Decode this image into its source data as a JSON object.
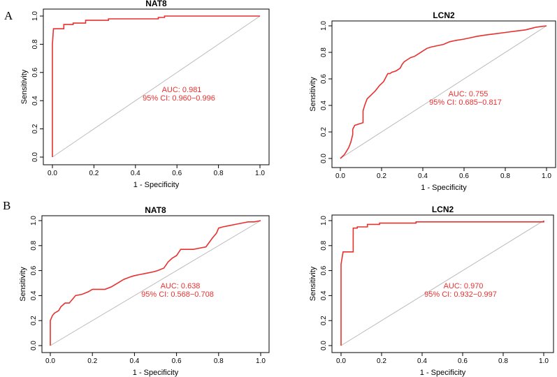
{
  "panel_labels": [
    "A",
    "B"
  ],
  "chart_data": [
    {
      "type": "line",
      "panel": "A",
      "title": "NAT8",
      "xlabel": "1 - Specificity",
      "ylabel": "Sensitivity",
      "xlim": [
        0,
        1
      ],
      "ylim": [
        0,
        1
      ],
      "xticks": [
        "0.0",
        "0.2",
        "0.4",
        "0.6",
        "0.8",
        "1.0"
      ],
      "yticks": [
        "0.0",
        "0.2",
        "0.4",
        "0.6",
        "0.8",
        "1.0"
      ],
      "auc_text": "AUC: 0.981",
      "ci_text": "95% CI: 0.960−0.996",
      "roc_color": "#e8312f",
      "diagonal_color": "#bbbbbb",
      "series": [
        {
          "name": "ROC",
          "x": [
            0,
            0,
            0.005,
            0.055,
            0.055,
            0.1,
            0.1,
            0.16,
            0.16,
            0.27,
            0.27,
            0.51,
            0.51,
            0.54,
            0.54,
            1.0
          ],
          "y": [
            0,
            0.8,
            0.91,
            0.91,
            0.94,
            0.94,
            0.95,
            0.95,
            0.97,
            0.97,
            0.98,
            0.98,
            0.99,
            0.99,
            1.0,
            1.0
          ]
        }
      ]
    },
    {
      "type": "line",
      "panel": "A",
      "title": "LCN2",
      "xlabel": "1 - Specificity",
      "ylabel": "Sensitivity",
      "xlim": [
        0,
        1
      ],
      "ylim": [
        0,
        1
      ],
      "xticks": [
        "0.0",
        "0.2",
        "0.4",
        "0.6",
        "0.8",
        "1.0"
      ],
      "yticks": [
        "0.0",
        "0.2",
        "0.4",
        "0.6",
        "0.8",
        "1.0"
      ],
      "auc_text": "AUC: 0.755",
      "ci_text": "95% CI: 0.685−0.817",
      "roc_color": "#e8312f",
      "diagonal_color": "#bbbbbb",
      "series": [
        {
          "name": "ROC",
          "x": [
            0,
            0.02,
            0.04,
            0.05,
            0.06,
            0.06,
            0.07,
            0.11,
            0.11,
            0.12,
            0.13,
            0.15,
            0.17,
            0.19,
            0.21,
            0.22,
            0.23,
            0.24,
            0.25,
            0.27,
            0.29,
            0.3,
            0.31,
            0.33,
            0.34,
            0.36,
            0.38,
            0.4,
            0.42,
            0.44,
            0.47,
            0.5,
            0.53,
            0.56,
            0.6,
            0.63,
            0.66,
            0.7,
            0.75,
            0.8,
            0.85,
            0.9,
            0.95,
            1.0
          ],
          "y": [
            0,
            0.03,
            0.08,
            0.12,
            0.18,
            0.22,
            0.25,
            0.27,
            0.36,
            0.41,
            0.45,
            0.48,
            0.51,
            0.55,
            0.58,
            0.61,
            0.64,
            0.64,
            0.65,
            0.66,
            0.68,
            0.71,
            0.73,
            0.75,
            0.76,
            0.77,
            0.79,
            0.81,
            0.83,
            0.84,
            0.85,
            0.86,
            0.88,
            0.89,
            0.9,
            0.91,
            0.92,
            0.93,
            0.94,
            0.95,
            0.96,
            0.97,
            0.99,
            1.0
          ]
        }
      ]
    },
    {
      "type": "line",
      "panel": "B",
      "title": "NAT8",
      "xlabel": "1 - Specificity",
      "ylabel": "Sensitivity",
      "xlim": [
        0,
        1
      ],
      "ylim": [
        0,
        1
      ],
      "xticks": [
        "0.0",
        "0.2",
        "0.4",
        "0.6",
        "0.8",
        "1.0"
      ],
      "yticks": [
        "0.0",
        "0.2",
        "0.4",
        "0.6",
        "0.8",
        "1.0"
      ],
      "auc_text": "AUC: 0.638",
      "ci_text": "95% CI: 0.568−0.708",
      "roc_color": "#e8312f",
      "diagonal_color": "#bbbbbb",
      "series": [
        {
          "name": "ROC",
          "x": [
            0,
            0,
            0.01,
            0.02,
            0.04,
            0.05,
            0.07,
            0.09,
            0.11,
            0.12,
            0.15,
            0.18,
            0.2,
            0.23,
            0.26,
            0.29,
            0.31,
            0.33,
            0.35,
            0.38,
            0.4,
            0.43,
            0.46,
            0.49,
            0.51,
            0.54,
            0.56,
            0.58,
            0.6,
            0.62,
            0.65,
            0.68,
            0.71,
            0.74,
            0.77,
            0.79,
            0.8,
            0.82,
            0.85,
            0.88,
            0.91,
            0.94,
            0.97,
            1.0
          ],
          "y": [
            0,
            0.2,
            0.24,
            0.26,
            0.28,
            0.31,
            0.34,
            0.34,
            0.38,
            0.4,
            0.41,
            0.43,
            0.45,
            0.45,
            0.45,
            0.47,
            0.49,
            0.51,
            0.53,
            0.55,
            0.56,
            0.57,
            0.58,
            0.59,
            0.6,
            0.62,
            0.67,
            0.7,
            0.72,
            0.77,
            0.77,
            0.77,
            0.78,
            0.79,
            0.86,
            0.9,
            0.94,
            0.95,
            0.96,
            0.97,
            0.98,
            0.99,
            0.99,
            1.0
          ]
        }
      ]
    },
    {
      "type": "line",
      "panel": "B",
      "title": "LCN2",
      "xlabel": "1 - Specificity",
      "ylabel": "Sensitivity",
      "xlim": [
        0,
        1
      ],
      "ylim": [
        0,
        1
      ],
      "xticks": [
        "0.0",
        "0.2",
        "0.4",
        "0.6",
        "0.8",
        "1.0"
      ],
      "yticks": [
        "0.0",
        "0.2",
        "0.4",
        "0.6",
        "0.8",
        "1.0"
      ],
      "auc_text": "AUC: 0.970",
      "ci_text": "95% CI: 0.932−0.997",
      "roc_color": "#e8312f",
      "diagonal_color": "#bbbbbb",
      "series": [
        {
          "name": "ROC",
          "x": [
            0,
            0,
            0.01,
            0.06,
            0.06,
            0.08,
            0.08,
            0.13,
            0.13,
            0.19,
            0.19,
            0.37,
            0.37,
            1.0,
            1.0
          ],
          "y": [
            0,
            0.65,
            0.75,
            0.75,
            0.94,
            0.94,
            0.95,
            0.95,
            0.97,
            0.97,
            0.98,
            0.98,
            0.99,
            0.99,
            1.0
          ]
        }
      ]
    }
  ]
}
